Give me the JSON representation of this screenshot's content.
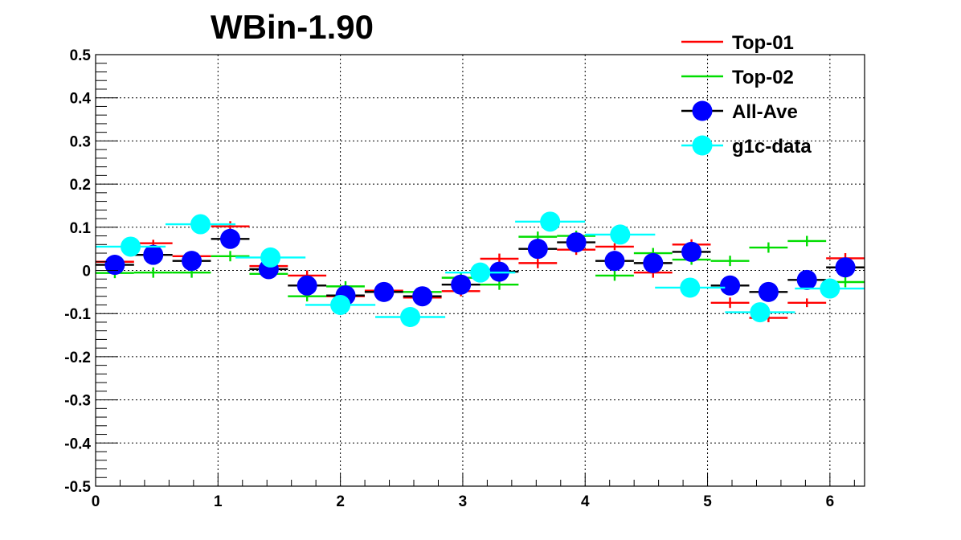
{
  "chart_data": {
    "type": "scatter",
    "title": "WBin-1.90",
    "xlabel": "",
    "ylabel": "",
    "xlim": [
      0,
      6.2832
    ],
    "ylim": [
      -0.5,
      0.5
    ],
    "grid": true,
    "legend_position": "top-right",
    "x_ticks": [
      "0",
      "1",
      "2",
      "3",
      "4",
      "5",
      "6"
    ],
    "y_ticks": [
      "-0.5",
      "-0.4",
      "-0.3",
      "-0.2",
      "-0.1",
      "0",
      "0.1",
      "0.2",
      "0.3",
      "0.4",
      "0.5"
    ],
    "series": [
      {
        "name": "Top-01",
        "color": "#ff0000",
        "marker": "cross",
        "x_err": 0.157,
        "x": [
          0.157,
          0.471,
          0.785,
          1.1,
          1.414,
          1.728,
          2.042,
          2.356,
          2.67,
          2.985,
          3.299,
          3.613,
          3.927,
          4.241,
          4.555,
          4.869,
          5.184,
          5.498,
          5.812,
          6.126
        ],
        "y": [
          0.02,
          0.063,
          0.033,
          0.102,
          0.01,
          -0.012,
          -0.06,
          -0.047,
          -0.063,
          -0.048,
          0.027,
          0.017,
          0.048,
          0.055,
          -0.005,
          0.06,
          -0.075,
          -0.11,
          -0.075,
          0.028
        ],
        "y_err": [
          0.008,
          0.008,
          0.008,
          0.012,
          0.008,
          0.012,
          0.008,
          0.008,
          0.008,
          0.012,
          0.012,
          0.012,
          0.012,
          0.008,
          0.012,
          0.012,
          0.012,
          0.01,
          0.01,
          0.012
        ]
      },
      {
        "name": "Top-02",
        "color": "#00dd00",
        "marker": "cross",
        "x_err": 0.157,
        "x": [
          0.157,
          0.471,
          0.785,
          1.1,
          1.414,
          1.728,
          2.042,
          2.356,
          2.67,
          2.985,
          3.299,
          3.613,
          3.927,
          4.241,
          4.555,
          4.869,
          5.184,
          5.498,
          5.812,
          6.126
        ],
        "y": [
          -0.006,
          -0.005,
          -0.005,
          0.033,
          -0.008,
          -0.06,
          -0.037,
          -0.05,
          -0.05,
          -0.017,
          -0.033,
          0.078,
          0.08,
          -0.012,
          0.04,
          0.025,
          0.022,
          0.053,
          0.068,
          -0.027
        ],
        "y_err": [
          0.012,
          0.012,
          0.012,
          0.012,
          0.012,
          0.012,
          0.012,
          0.012,
          0.012,
          0.012,
          0.012,
          0.012,
          0.012,
          0.012,
          0.012,
          0.012,
          0.012,
          0.012,
          0.012,
          0.012
        ]
      },
      {
        "name": "All-Ave",
        "color": "#0000ff",
        "marker": "circle",
        "x_err": 0.157,
        "x": [
          0.157,
          0.471,
          0.785,
          1.1,
          1.414,
          1.728,
          2.042,
          2.356,
          2.67,
          2.985,
          3.299,
          3.613,
          3.927,
          4.241,
          4.555,
          4.869,
          5.184,
          5.498,
          5.812,
          6.126
        ],
        "y": [
          0.013,
          0.036,
          0.022,
          0.073,
          0.003,
          -0.035,
          -0.058,
          -0.05,
          -0.06,
          -0.033,
          -0.003,
          0.05,
          0.065,
          0.022,
          0.017,
          0.043,
          -0.035,
          -0.05,
          -0.022,
          0.007
        ],
        "y_err": [
          0.006,
          0.006,
          0.006,
          0.008,
          0.006,
          0.008,
          0.006,
          0.006,
          0.006,
          0.008,
          0.008,
          0.008,
          0.008,
          0.006,
          0.008,
          0.008,
          0.008,
          0.006,
          0.006,
          0.008
        ]
      },
      {
        "name": "g1c-data",
        "color": "#00ffff",
        "marker": "circle",
        "x_err": 0.286,
        "x": [
          0.286,
          0.857,
          1.429,
          2.0,
          2.571,
          3.143,
          3.714,
          4.286,
          4.857,
          5.429,
          6.0
        ],
        "y": [
          0.055,
          0.107,
          0.03,
          -0.08,
          -0.108,
          -0.005,
          0.113,
          0.083,
          -0.04,
          -0.097,
          -0.042
        ],
        "y_err": [
          0.003,
          0.003,
          0.003,
          0.003,
          0.003,
          0.003,
          0.003,
          0.003,
          0.003,
          0.003,
          0.003
        ]
      }
    ]
  }
}
